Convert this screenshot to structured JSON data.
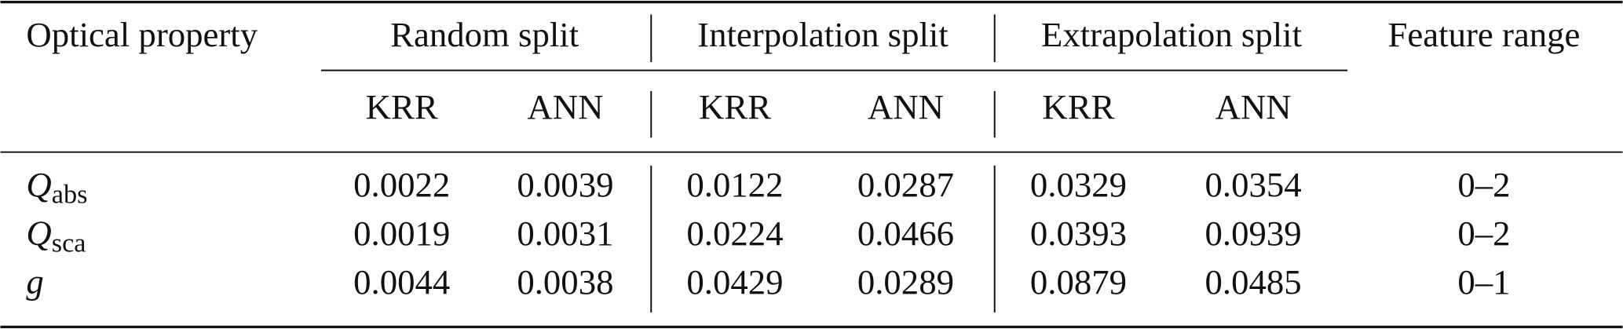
{
  "table": {
    "header": {
      "first": "Optical property",
      "groups": [
        "Random split",
        "Interpolation split",
        "Extrapolation split"
      ],
      "last": "Feature range",
      "models": [
        "KRR",
        "ANN",
        "KRR",
        "ANN",
        "KRR",
        "ANN"
      ]
    },
    "rows": [
      {
        "symbol": "Q",
        "subscript": "abs",
        "cells": [
          "0.0022",
          "0.0039",
          "0.0122",
          "0.0287",
          "0.0329",
          "0.0354"
        ],
        "range": "0–2"
      },
      {
        "symbol": "Q",
        "subscript": "sca",
        "cells": [
          "0.0019",
          "0.0031",
          "0.0224",
          "0.0466",
          "0.0393",
          "0.0939"
        ],
        "range": "0–2"
      },
      {
        "symbol": "g",
        "cells": [
          "0.0044",
          "0.0038",
          "0.0429",
          "0.0289",
          "0.0879",
          "0.0485"
        ],
        "range": "0–1"
      }
    ]
  }
}
